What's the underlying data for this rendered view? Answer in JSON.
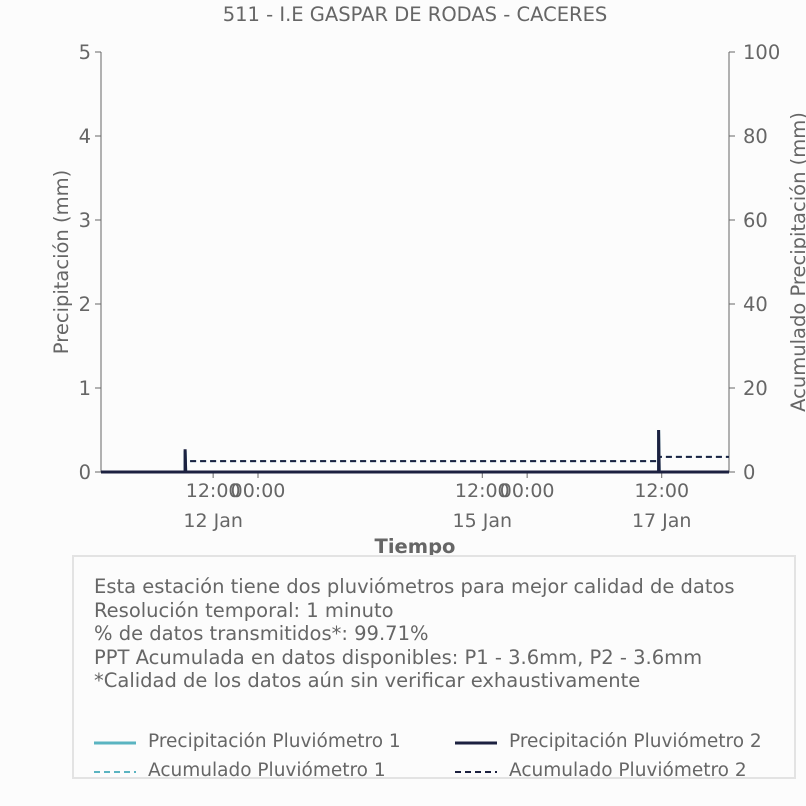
{
  "chart_data": {
    "type": "line",
    "title": "511 - I.E GASPAR DE RODAS - CACERES",
    "xlabel": "Tiempo",
    "ylabel_left": "Precipitación (mm)",
    "ylabel_right": "Acumulado Precipitación (mm)",
    "ylim_left": [
      0,
      5
    ],
    "ylim_right": [
      0,
      100
    ],
    "yticks_left": [
      "0",
      "1",
      "2",
      "3",
      "4",
      "5"
    ],
    "yticks_right": [
      "0",
      "20",
      "40",
      "60",
      "80",
      "100"
    ],
    "xlim": [
      "2024-01-11T06:00",
      "2024-01-18T06:00"
    ],
    "xticks": [
      {
        "t": "2024-01-12T12:00",
        "label": "12:00",
        "sublabel": "12 Jan"
      },
      {
        "t": "2024-01-13T00:00",
        "label": "00:00",
        "sublabel": ""
      },
      {
        "t": "2024-01-15T12:00",
        "label": "12:00",
        "sublabel": "15 Jan"
      },
      {
        "t": "2024-01-16T00:00",
        "label": "00:00",
        "sublabel": ""
      },
      {
        "t": "2024-01-17T12:00",
        "label": "12:00",
        "sublabel": "17 Jan"
      }
    ],
    "grid": false,
    "series": [
      {
        "name": "Precipitación Pluviómetro 1",
        "axis": "left",
        "style": "solid",
        "color": "#5ab4c1",
        "points": [
          [
            "2024-01-11T06:00",
            0
          ],
          [
            "2024-01-12T04:30",
            0
          ],
          [
            "2024-01-12T04:30",
            0.25
          ],
          [
            "2024-01-12T04:40",
            0
          ],
          [
            "2024-01-17T11:10",
            0
          ],
          [
            "2024-01-17T11:10",
            0.5
          ],
          [
            "2024-01-17T11:20",
            0
          ],
          [
            "2024-01-18T06:00",
            0
          ]
        ]
      },
      {
        "name": "Precipitación Pluviómetro 2",
        "axis": "left",
        "style": "solid",
        "color": "#1c2140",
        "points": [
          [
            "2024-01-11T06:00",
            0
          ],
          [
            "2024-01-12T04:30",
            0
          ],
          [
            "2024-01-12T04:30",
            0.27
          ],
          [
            "2024-01-12T04:40",
            0
          ],
          [
            "2024-01-17T11:10",
            0
          ],
          [
            "2024-01-17T11:10",
            0.5
          ],
          [
            "2024-01-17T11:20",
            0
          ],
          [
            "2024-01-18T06:00",
            0
          ]
        ]
      },
      {
        "name": "Acumulado Pluviómetro 1",
        "axis": "right",
        "style": "dashed",
        "color": "#5ab4c1",
        "points": [
          [
            "2024-01-11T06:00",
            0
          ],
          [
            "2024-01-12T04:30",
            0
          ],
          [
            "2024-01-12T04:30",
            2.6
          ],
          [
            "2024-01-17T11:10",
            2.6
          ],
          [
            "2024-01-17T11:10",
            3.6
          ],
          [
            "2024-01-18T06:00",
            3.6
          ]
        ]
      },
      {
        "name": "Acumulado Pluviómetro 2",
        "axis": "right",
        "style": "dashed",
        "color": "#1c2140",
        "points": [
          [
            "2024-01-11T06:00",
            0
          ],
          [
            "2024-01-12T04:30",
            0
          ],
          [
            "2024-01-12T04:30",
            2.6
          ],
          [
            "2024-01-17T11:10",
            2.6
          ],
          [
            "2024-01-17T11:10",
            3.6
          ],
          [
            "2024-01-18T06:00",
            3.6
          ]
        ]
      }
    ],
    "legend_placement": "bottom"
  },
  "info": {
    "lines": [
      "Esta estación tiene dos pluviómetros para mejor calidad de datos",
      "Resolución temporal: 1 minuto",
      "% de datos transmitidos*: 99.71%",
      "PPT Acumulada en datos disponibles: P1 - 3.6mm, P2 - 3.6mm",
      "*Calidad de los datos aún sin verificar exhaustivamente"
    ]
  },
  "legend": [
    {
      "label": "Precipitación Pluviómetro 1",
      "color": "#5ab4c1",
      "style": "solid"
    },
    {
      "label": "Precipitación Pluviómetro 2",
      "color": "#1c2140",
      "style": "solid"
    },
    {
      "label": "Acumulado Pluviómetro 1",
      "color": "#5ab4c1",
      "style": "dashed"
    },
    {
      "label": "Acumulado Pluviómetro 2",
      "color": "#1c2140",
      "style": "dashed"
    }
  ]
}
